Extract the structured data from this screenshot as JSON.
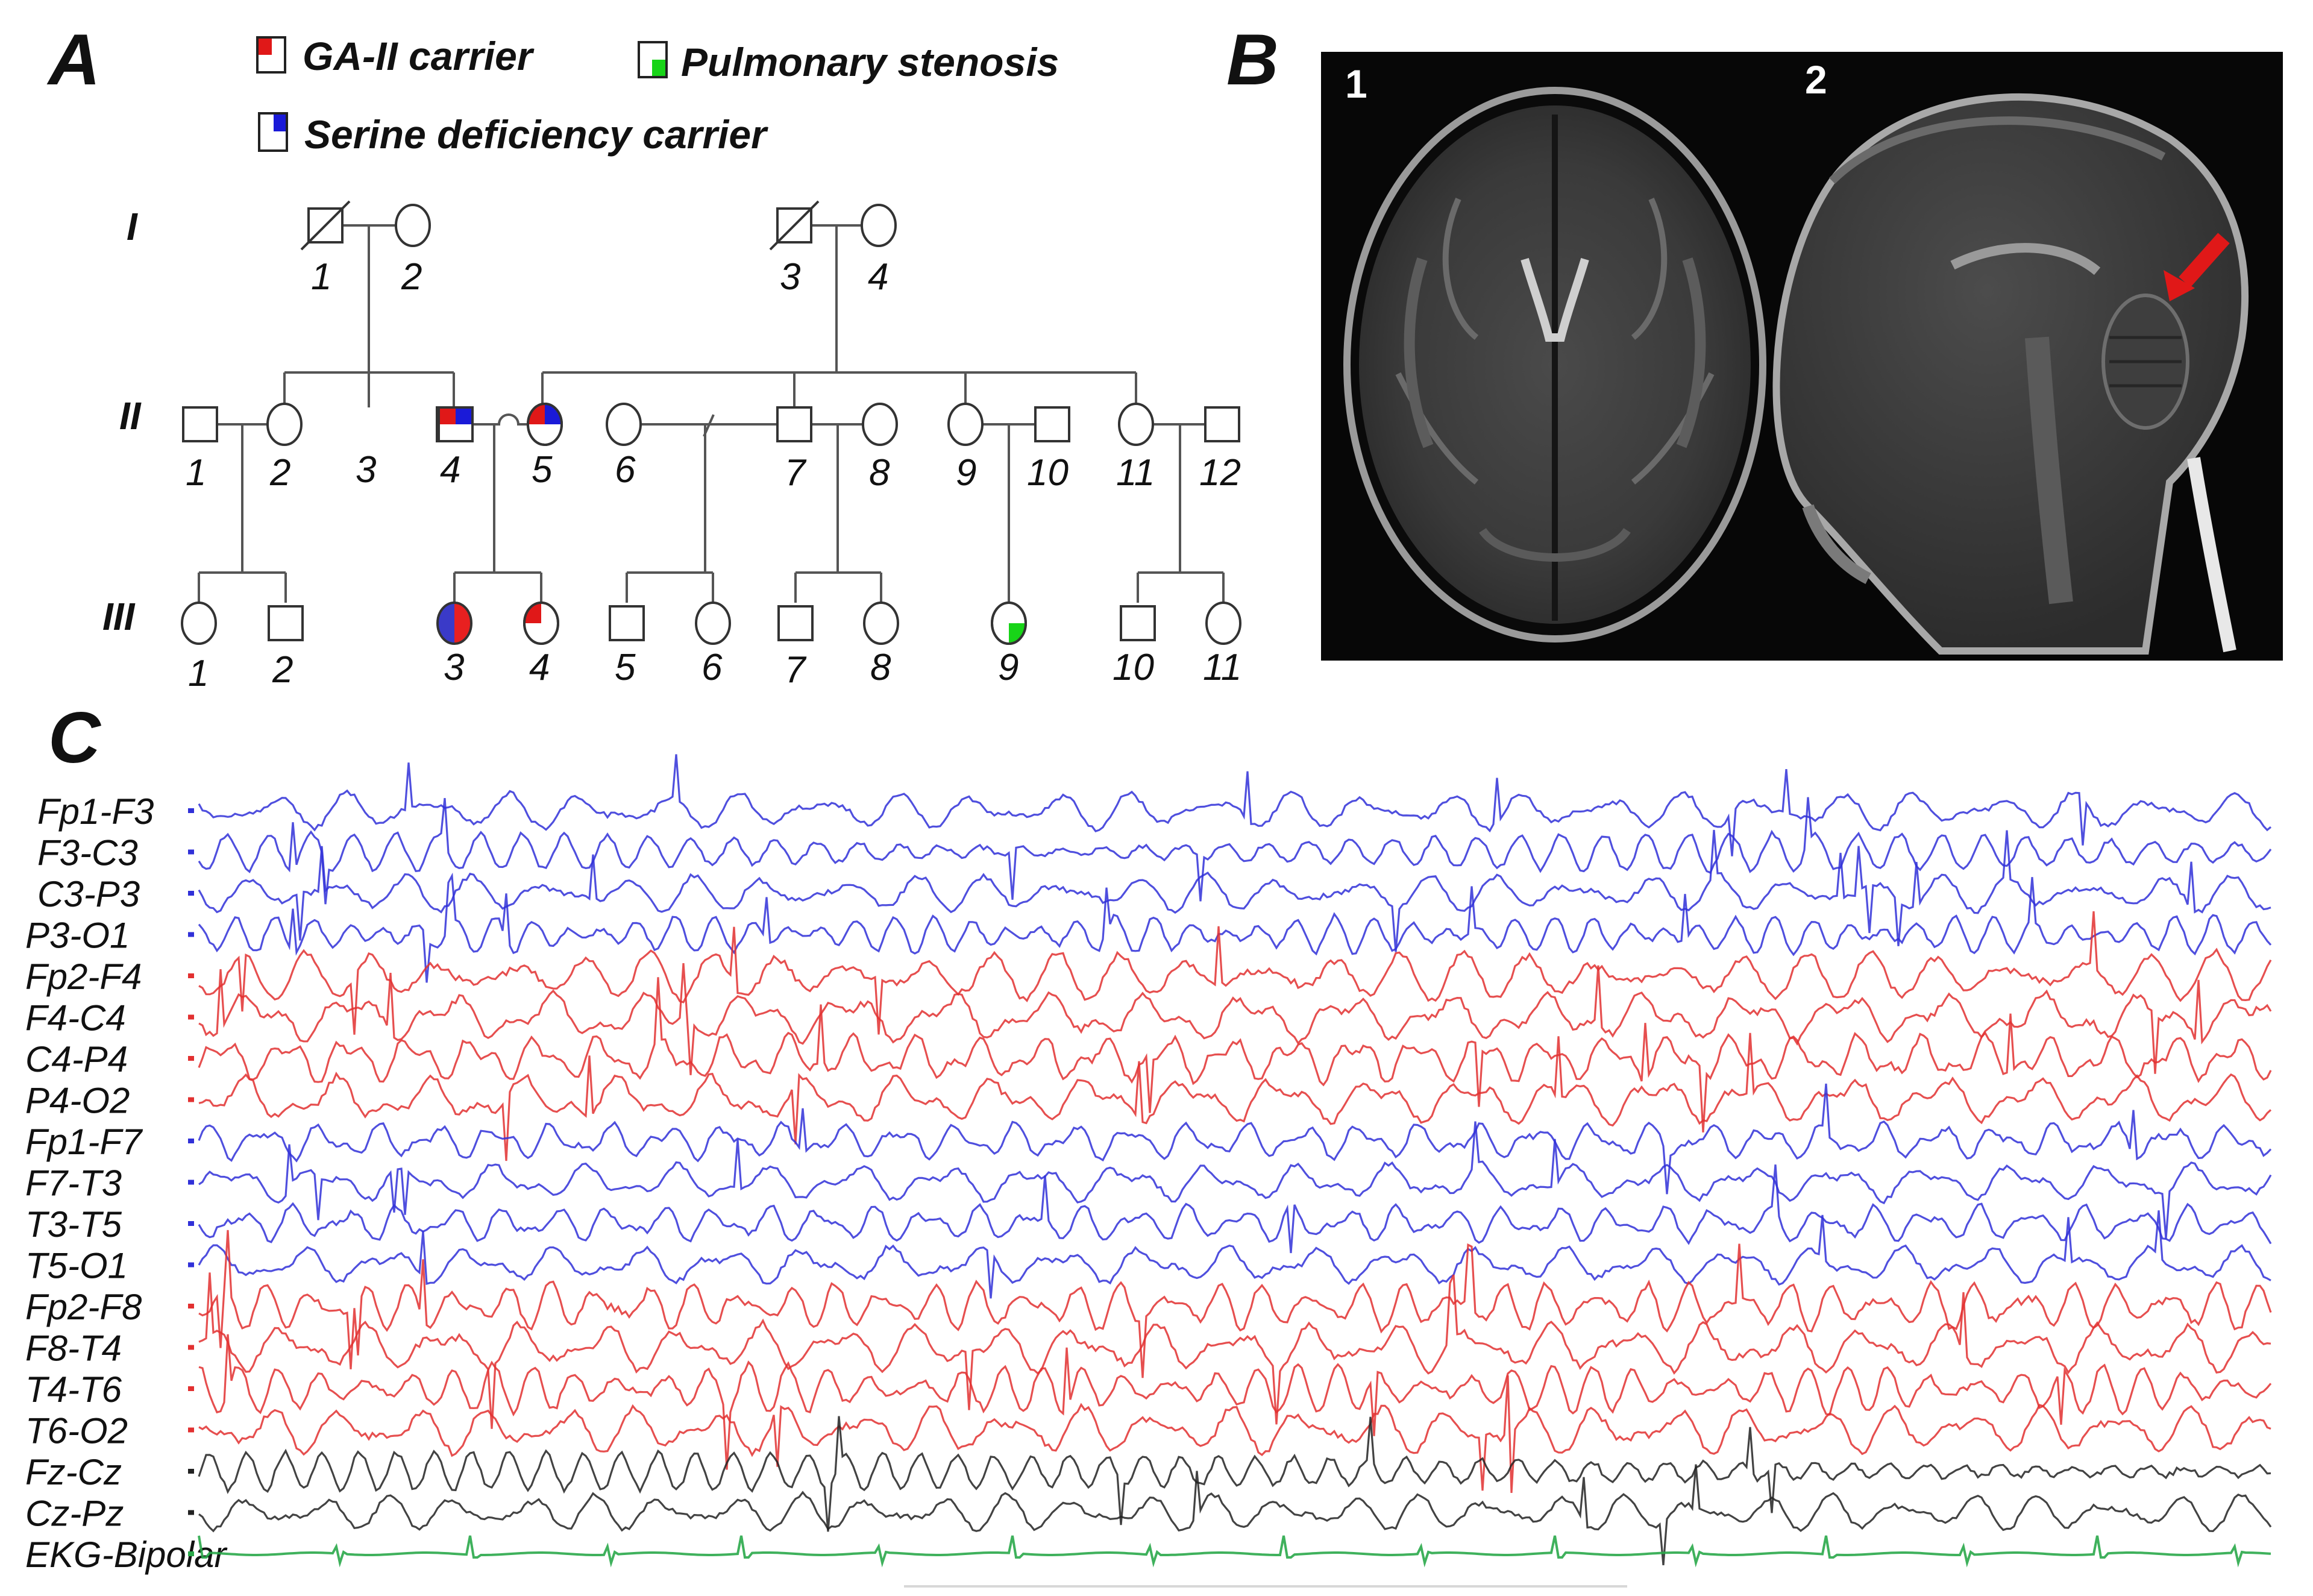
{
  "panels": {
    "a": "A",
    "b": "B",
    "c": "C"
  },
  "legend": {
    "ga2": "GA-II carrier",
    "pulmonary": "Pulmonary stenosis",
    "serine": "Serine deficiency carrier"
  },
  "generations": [
    "I",
    "II",
    "III"
  ],
  "gen1": [
    "1",
    "2",
    "3",
    "4"
  ],
  "gen2": [
    "1",
    "2",
    "3",
    "4",
    "5",
    "6",
    "7",
    "8",
    "9",
    "10",
    "11",
    "12"
  ],
  "gen3": [
    "1",
    "2",
    "3",
    "4",
    "5",
    "6",
    "7",
    "8",
    "9",
    "10",
    "11"
  ],
  "mri": {
    "axial_label": "1",
    "sagittal_label": "2"
  },
  "eeg": {
    "channels": [
      "Fp1-F3",
      "F3-C3",
      "C3-P3",
      "P3-O1",
      "Fp2-F4",
      "F4-C4",
      "C4-P4",
      "P4-O2",
      "Fp1-F7",
      "F7-T3",
      "T3-T5",
      "T5-O1",
      "Fp2-F8",
      "F8-T4",
      "T4-T6",
      "T6-O2",
      "Fz-Cz",
      "Cz-Pz",
      "EKG-Bipolar"
    ],
    "channel_colors": [
      "#3030d8",
      "#3030d8",
      "#3030d8",
      "#3030d8",
      "#e23030",
      "#e23030",
      "#e23030",
      "#e23030",
      "#3030d8",
      "#3030d8",
      "#3030d8",
      "#3030d8",
      "#e23030",
      "#e23030",
      "#e23030",
      "#e23030",
      "#222222",
      "#222222",
      "#2aa84a"
    ]
  },
  "colors": {
    "ga2": "#e01818",
    "serine": "#1a1ad8",
    "pulmonary": "#18d418",
    "symbol_stroke": "#333333"
  }
}
